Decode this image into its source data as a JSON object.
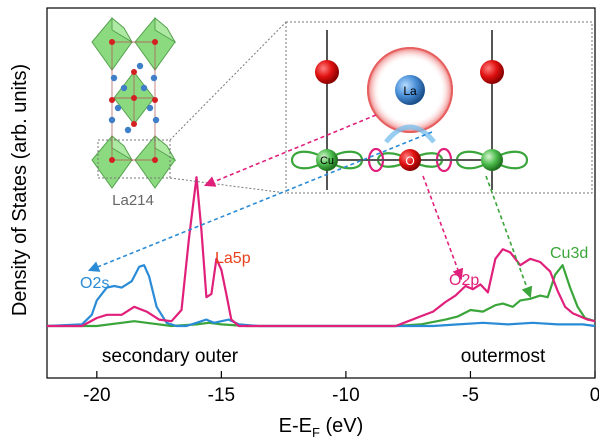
{
  "chart_data": {
    "type": "line",
    "xlabel_main": "E-E",
    "xlabel_sub": "F",
    "xlabel_unit": " (eV)",
    "ylabel": "Density of States (arb. units)",
    "xlim": [
      -22,
      0
    ],
    "xticks": [
      "-20",
      "-15",
      "-10",
      "-5",
      "0"
    ],
    "xtick_values": [
      -20,
      -15,
      -10,
      -5,
      0
    ],
    "region_labels": {
      "left": "secondary outer",
      "right": "outermost"
    },
    "inset_label": "La214",
    "atom_labels": {
      "la": "La",
      "cu": "Cu",
      "o": "O"
    },
    "colors": {
      "O2s": "#2a8bd6",
      "La5p": "#e0207a",
      "Cu3d": "#3aa53a",
      "O2p": "#e0207a",
      "axis": "#000000"
    },
    "series": [
      {
        "name": "O2s",
        "label_color": "#2a8bd6",
        "x": [
          -22,
          -20.6,
          -20.2,
          -20.0,
          -19.6,
          -19.3,
          -19.0,
          -18.6,
          -18.3,
          -18.1,
          -17.9,
          -17.6,
          -17.2,
          -16.8,
          -16.4,
          -16.0,
          -15.6,
          -15.3,
          -15.0,
          -14.7,
          -14.3,
          -13.5,
          -12,
          -8,
          -6.5,
          -5.5,
          -4.5,
          -3.5,
          -2.5,
          -1.5,
          -0.5,
          0
        ],
        "y": [
          0,
          0.01,
          0.07,
          0.16,
          0.24,
          0.25,
          0.24,
          0.28,
          0.37,
          0.38,
          0.31,
          0.12,
          0.02,
          0.0,
          0.0,
          0.02,
          0.04,
          0.02,
          0.03,
          0.04,
          0.01,
          0.0,
          0.0,
          0.0,
          0.0,
          0.01,
          0.02,
          0.01,
          0.02,
          0.01,
          0.01,
          0.0
        ]
      },
      {
        "name": "La5p",
        "label_color": "#e0207a",
        "x": [
          -22,
          -20.6,
          -20.0,
          -19.6,
          -19.0,
          -18.5,
          -18.0,
          -17.5,
          -17.0,
          -16.6,
          -16.3,
          -16.0,
          -15.8,
          -15.6,
          -15.4,
          -15.2,
          -15.0,
          -14.8,
          -14.6,
          -14.3,
          -13.5,
          -12,
          -8
        ],
        "y": [
          0,
          0.0,
          0.05,
          0.07,
          0.07,
          0.12,
          0.09,
          0.04,
          0.03,
          0.1,
          0.55,
          0.93,
          0.6,
          0.18,
          0.2,
          0.42,
          0.35,
          0.2,
          0.04,
          0.0,
          0.0,
          0.0,
          0.0
        ]
      },
      {
        "name": "O2p",
        "label_color": "#e0207a",
        "x": [
          -8,
          -7.5,
          -7.0,
          -6.5,
          -6.0,
          -5.6,
          -5.2,
          -4.9,
          -4.6,
          -4.3,
          -4.0,
          -3.7,
          -3.4,
          -3.0,
          -2.6,
          -2.2,
          -1.8,
          -1.5,
          -1.2,
          -0.9,
          -0.6,
          -0.3,
          0
        ],
        "y": [
          0,
          0.03,
          0.06,
          0.09,
          0.15,
          0.19,
          0.25,
          0.23,
          0.26,
          0.21,
          0.42,
          0.48,
          0.46,
          0.38,
          0.42,
          0.4,
          0.34,
          0.22,
          0.12,
          0.08,
          0.06,
          0.04,
          0.03
        ]
      },
      {
        "name": "Cu3d",
        "label_color": "#3aa53a",
        "x": [
          -22,
          -20.0,
          -19.0,
          -18.5,
          -18.0,
          -17.0,
          -16.0,
          -15.5,
          -15.0,
          -14.0,
          -12,
          -8,
          -7.0,
          -6.0,
          -5.5,
          -5.0,
          -4.5,
          -4.0,
          -3.7,
          -3.3,
          -3.0,
          -2.6,
          -2.2,
          -1.9,
          -1.6,
          -1.3,
          -1.0,
          -0.7,
          -0.4,
          0
        ],
        "y": [
          0,
          0.0,
          0.02,
          0.03,
          0.02,
          0.0,
          0.01,
          0.02,
          0.01,
          0.0,
          0.0,
          0.0,
          0.01,
          0.04,
          0.06,
          0.1,
          0.09,
          0.13,
          0.14,
          0.12,
          0.16,
          0.17,
          0.19,
          0.18,
          0.32,
          0.38,
          0.24,
          0.12,
          0.05,
          0.03
        ]
      }
    ]
  }
}
